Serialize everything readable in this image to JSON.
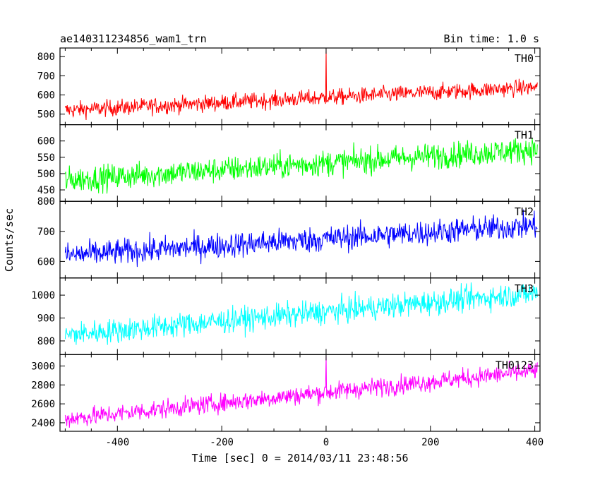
{
  "header": {
    "title": "ae140311234856_wam1_trn",
    "bin_time": "Bin time: 1.0 s"
  },
  "chart_data": {
    "type": "line",
    "xlabel": "Time [sec] 0 = 2014/03/11 23:48:56",
    "ylabel": "Counts/sec",
    "xlim": [
      -510,
      410
    ],
    "x_ticks": [
      -400,
      -200,
      0,
      200,
      400
    ],
    "x_range_data": [
      -500,
      405
    ],
    "grid": false,
    "panels": [
      {
        "label": "TH0",
        "color": "#ff0000",
        "ylim": [
          445,
          845
        ],
        "y_ticks": [
          500,
          600,
          700,
          800
        ],
        "trend_start": 520,
        "trend_end": 640,
        "noise": 30,
        "spike": {
          "x": 0,
          "value": 840
        }
      },
      {
        "label": "TH1",
        "color": "#00ff00",
        "ylim": [
          415,
          650
        ],
        "y_ticks": [
          450,
          500,
          550,
          600
        ],
        "trend_start": 480,
        "trend_end": 575,
        "noise": 28,
        "spike": null
      },
      {
        "label": "TH2",
        "color": "#0000ff",
        "ylim": [
          545,
          800
        ],
        "y_ticks": [
          600,
          700,
          800
        ],
        "trend_start": 620,
        "trend_end": 720,
        "noise": 30,
        "spike": null
      },
      {
        "label": "TH3",
        "color": "#00ffff",
        "ylim": [
          740,
          1075
        ],
        "y_ticks": [
          800,
          900,
          1000
        ],
        "trend_start": 825,
        "trend_end": 1010,
        "noise": 38,
        "spike": null
      },
      {
        "label": "TH0123",
        "color": "#ff00ff",
        "ylim": [
          2310,
          3120
        ],
        "y_ticks": [
          2400,
          2600,
          2800,
          3000
        ],
        "trend_start": 2440,
        "trend_end": 2950,
        "noise": 70,
        "spike": {
          "x": 0,
          "value": 3110
        }
      }
    ]
  }
}
